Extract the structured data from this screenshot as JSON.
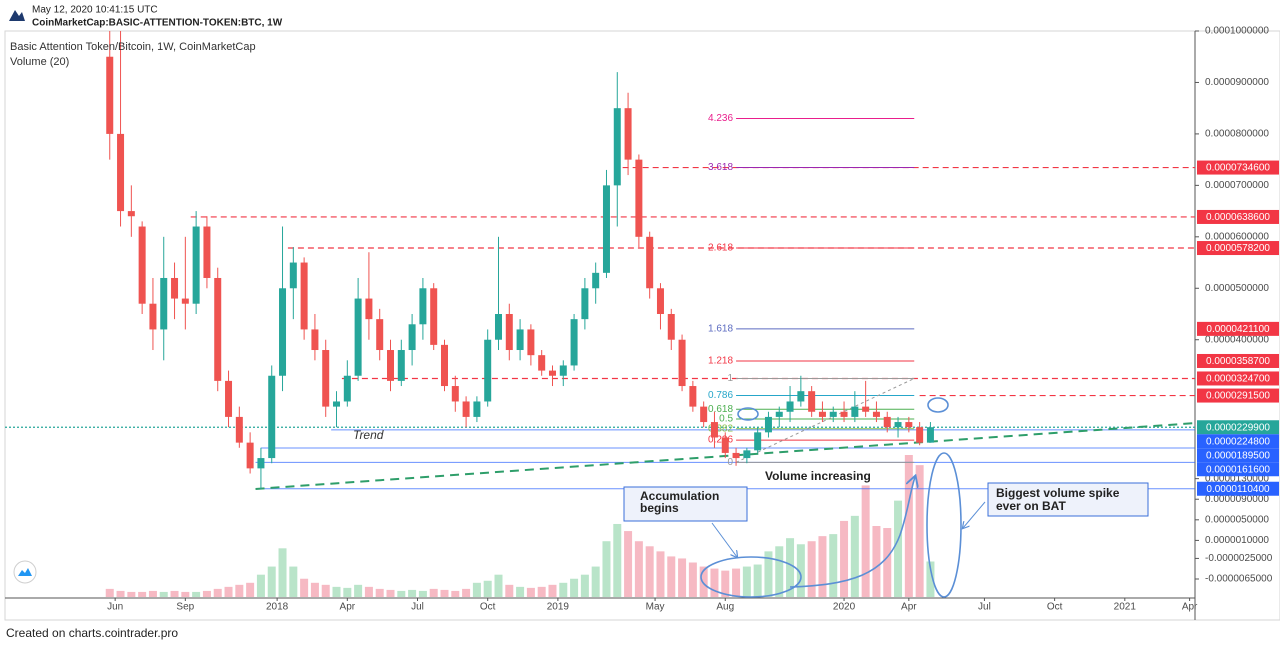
{
  "header": {
    "timestamp": "May 12, 2020 10:41:15 UTC",
    "symbol": "CoinMarketCap:BASIC-ATTENTION-TOKEN:BTC, 1W"
  },
  "footer": "Created on charts.cointrader.pro",
  "chart_data": {
    "type": "candlestick",
    "title": "Basic Attention Token/Bitcoin, 1W, CoinMarketCap",
    "subtitle": "Volume (20)",
    "colors": {
      "up": "#26a69a",
      "down": "#ef5350",
      "volume_up": "#b9e4c9",
      "volume_down": "#f6b9c3"
    },
    "x": [
      0,
      2,
      4,
      6,
      8,
      10,
      12,
      14,
      16,
      18,
      20,
      22,
      24,
      26,
      28,
      30,
      32,
      34,
      36,
      38,
      40,
      42,
      44,
      46,
      48,
      50,
      52,
      54,
      56,
      58,
      60,
      62,
      64,
      66,
      68,
      70,
      72,
      74,
      76,
      78,
      80,
      82,
      84,
      86,
      88,
      90,
      92,
      94,
      96,
      98,
      100,
      102,
      104,
      106,
      108,
      110,
      112,
      114,
      116,
      118,
      120,
      122,
      124,
      126,
      128,
      130,
      132,
      134,
      136,
      138,
      140,
      142,
      144,
      146,
      148,
      150,
      152
    ],
    "open": [
      9.5e-05,
      8e-05,
      6.5e-05,
      6.2e-05,
      4.7e-05,
      4.2e-05,
      5.2e-05,
      4.8e-05,
      4.7e-05,
      6.2e-05,
      5.2e-05,
      3.2e-05,
      2.5e-05,
      2e-05,
      1.5e-05,
      1.7e-05,
      3.3e-05,
      5e-05,
      5.5e-05,
      4.2e-05,
      3.8e-05,
      2.7e-05,
      2.8e-05,
      3.3e-05,
      4.8e-05,
      4.4e-05,
      3.8e-05,
      3.2e-05,
      3.8e-05,
      4.3e-05,
      5e-05,
      3.9e-05,
      3.1e-05,
      2.8e-05,
      2.5e-05,
      2.8e-05,
      4e-05,
      4.5e-05,
      3.8e-05,
      4.2e-05,
      3.7e-05,
      3.4e-05,
      3.3e-05,
      3.5e-05,
      4.4e-05,
      5e-05,
      5.3e-05,
      7e-05,
      8.5e-05,
      7.5e-05,
      6e-05,
      5e-05,
      4.5e-05,
      4e-05,
      3.1e-05,
      2.7e-05,
      2.4e-05,
      2.1e-05,
      1.8e-05,
      1.7e-05,
      1.85e-05,
      2.2e-05,
      2.5e-05,
      2.6e-05,
      2.8e-05,
      3e-05,
      2.6e-05,
      2.5e-05,
      2.6e-05,
      2.5e-05,
      2.7e-05,
      2.6e-05,
      2.5e-05,
      2.3e-05,
      2.4e-05,
      2.3e-05,
      2e-05
    ],
    "high": [
      0.00011,
      0.0001,
      7e-05,
      6.3e-05,
      5.2e-05,
      6e-05,
      5.5e-05,
      6e-05,
      6.5e-05,
      6.4e-05,
      5.4e-05,
      3.4e-05,
      2.7e-05,
      2.2e-05,
      1.9e-05,
      3.5e-05,
      6.2e-05,
      5.8e-05,
      5.6e-05,
      4.5e-05,
      4e-05,
      3e-05,
      3.6e-05,
      5.2e-05,
      5.7e-05,
      4.6e-05,
      4e-05,
      4e-05,
      4.5e-05,
      5.2e-05,
      5.1e-05,
      4e-05,
      3.3e-05,
      2.9e-05,
      2.9e-05,
      4.2e-05,
      6e-05,
      4.7e-05,
      4.4e-05,
      4.3e-05,
      3.8e-05,
      3.5e-05,
      3.6e-05,
      4.5e-05,
      5.2e-05,
      5.5e-05,
      7.3e-05,
      9.2e-05,
      8.8e-05,
      7.6e-05,
      6.1e-05,
      5.1e-05,
      4.6e-05,
      4.1e-05,
      3.2e-05,
      2.8e-05,
      2.6e-05,
      2.2e-05,
      1.9e-05,
      1.9e-05,
      2.3e-05,
      2.6e-05,
      2.7e-05,
      3.1e-05,
      3.3e-05,
      3.1e-05,
      2.8e-05,
      2.7e-05,
      2.8e-05,
      3e-05,
      3.2e-05,
      2.8e-05,
      2.6e-05,
      2.5e-05,
      2.5e-05,
      2.4e-05,
      2.4e-05
    ],
    "low": [
      7.5e-05,
      6.2e-05,
      6e-05,
      4.5e-05,
      3.8e-05,
      3.6e-05,
      4.4e-05,
      4.2e-05,
      4.5e-05,
      5e-05,
      3e-05,
      2.3e-05,
      1.9e-05,
      1.4e-05,
      1.1e-05,
      1.6e-05,
      3e-05,
      4.4e-05,
      4e-05,
      3.6e-05,
      2.5e-05,
      2.3e-05,
      2.7e-05,
      3.2e-05,
      4e-05,
      3.6e-05,
      3e-05,
      3.1e-05,
      3.5e-05,
      4e-05,
      3.8e-05,
      3e-05,
      2.6e-05,
      2.3e-05,
      2.4e-05,
      2.7e-05,
      3.8e-05,
      3.6e-05,
      3.6e-05,
      3.5e-05,
      3.3e-05,
      3.1e-05,
      3.1e-05,
      3.4e-05,
      4.2e-05,
      4.7e-05,
      5.2e-05,
      6.2e-05,
      7.2e-05,
      5.8e-05,
      4.8e-05,
      4.2e-05,
      3.8e-05,
      3e-05,
      2.6e-05,
      2.3e-05,
      1.9e-05,
      1.7e-05,
      1.55e-05,
      1.6e-05,
      1.8e-05,
      2.1e-05,
      2.3e-05,
      2.4e-05,
      2.7e-05,
      2.5e-05,
      2.4e-05,
      2.4e-05,
      2.4e-05,
      2.4e-05,
      2.5e-05,
      2.4e-05,
      2.2e-05,
      2.1e-05,
      2.2e-05,
      1.95e-05,
      2e-05
    ],
    "close": [
      8e-05,
      6.5e-05,
      6.4e-05,
      4.7e-05,
      4.2e-05,
      5.2e-05,
      4.8e-05,
      4.7e-05,
      6.2e-05,
      5.2e-05,
      3.2e-05,
      2.5e-05,
      2e-05,
      1.5e-05,
      1.7e-05,
      3.3e-05,
      5e-05,
      5.5e-05,
      4.2e-05,
      3.8e-05,
      2.7e-05,
      2.8e-05,
      3.3e-05,
      4.8e-05,
      4.4e-05,
      3.8e-05,
      3.2e-05,
      3.8e-05,
      4.3e-05,
      5e-05,
      3.9e-05,
      3.1e-05,
      2.8e-05,
      2.5e-05,
      2.8e-05,
      4e-05,
      4.5e-05,
      3.8e-05,
      4.2e-05,
      3.7e-05,
      3.4e-05,
      3.3e-05,
      3.5e-05,
      4.4e-05,
      5e-05,
      5.3e-05,
      7e-05,
      8.5e-05,
      7.5e-05,
      6e-05,
      5e-05,
      4.5e-05,
      4e-05,
      3.1e-05,
      2.7e-05,
      2.4e-05,
      2.1e-05,
      1.8e-05,
      1.7e-05,
      1.85e-05,
      2.2e-05,
      2.5e-05,
      2.6e-05,
      2.8e-05,
      3e-05,
      2.6e-05,
      2.5e-05,
      2.6e-05,
      2.5e-05,
      2.7e-05,
      2.6e-05,
      2.5e-05,
      2.3e-05,
      2.4e-05,
      2.3e-05,
      2e-05,
      2.3e-05
    ],
    "volume": [
      8,
      6,
      5,
      5,
      6,
      5,
      6,
      5,
      5,
      6,
      8,
      10,
      12,
      14,
      22,
      30,
      48,
      30,
      18,
      14,
      12,
      10,
      9,
      12,
      10,
      8,
      7,
      6,
      7,
      6,
      8,
      7,
      6,
      8,
      14,
      16,
      22,
      12,
      10,
      9,
      10,
      12,
      14,
      18,
      22,
      30,
      55,
      72,
      65,
      55,
      50,
      45,
      40,
      38,
      34,
      30,
      28,
      26,
      28,
      30,
      32,
      45,
      50,
      58,
      52,
      55,
      60,
      62,
      75,
      80,
      110,
      70,
      68,
      95,
      140,
      130,
      35
    ],
    "xlim": [
      -19.4,
      201
    ],
    "xticks": [
      {
        "value": 1,
        "label": "Jun"
      },
      {
        "value": 14,
        "label": "Sep"
      },
      {
        "value": 31,
        "label": "2018"
      },
      {
        "value": 44,
        "label": "Apr"
      },
      {
        "value": 57,
        "label": "Jul"
      },
      {
        "value": 70,
        "label": "Oct"
      },
      {
        "value": 83,
        "label": "2019"
      },
      {
        "value": 101,
        "label": "May"
      },
      {
        "value": 114,
        "label": "Aug"
      },
      {
        "value": 136,
        "label": "2020"
      },
      {
        "value": 148,
        "label": "Apr"
      },
      {
        "value": 162,
        "label": "Jul"
      },
      {
        "value": 175,
        "label": "Oct"
      },
      {
        "value": 188,
        "label": "2021"
      },
      {
        "value": 200,
        "label": "Apr"
      }
    ],
    "ylim": [
      -1e-05,
      0.0001
    ],
    "yticks": [
      {
        "value": 0.0001,
        "label": "0.0001000000"
      },
      {
        "value": 9e-05,
        "label": "0.0000900000"
      },
      {
        "value": 8e-05,
        "label": "0.0000800000"
      },
      {
        "value": 7e-05,
        "label": "0.0000700000"
      },
      {
        "value": 6e-05,
        "label": "0.0000600000"
      },
      {
        "value": 5e-05,
        "label": "0.0000500000"
      },
      {
        "value": 4e-05,
        "label": "0.0000400000"
      },
      {
        "value": 1.3e-05,
        "label": "0.0000130000"
      },
      {
        "value": 9e-06,
        "label": "0.0000090000"
      },
      {
        "value": 5e-06,
        "label": "0.0000050000"
      },
      {
        "value": 1e-06,
        "label": "0.0000010000"
      },
      {
        "value": -2.5e-06,
        "label": "-0.0000025000"
      },
      {
        "value": -6.5e-06,
        "label": "-0.0000065000"
      }
    ],
    "levels": [
      {
        "value": 7.346e-05,
        "label": "0.0000734600",
        "color": "#f23645",
        "style": "dashed",
        "start": 95
      },
      {
        "value": 6.386e-05,
        "label": "0.0000638600",
        "color": "#f23645",
        "style": "dashed",
        "start": 15
      },
      {
        "value": 5.782e-05,
        "label": "0.0000578200",
        "color": "#f23645",
        "style": "dashed",
        "start": 33
      },
      {
        "value": 4.211e-05,
        "label": "0.0000421100",
        "color": "#f23645",
        "style": "none",
        "start": 149
      },
      {
        "value": 3.587e-05,
        "label": "0.0000358700",
        "color": "#f23645",
        "style": "none",
        "start": 149
      },
      {
        "value": 3.247e-05,
        "label": "0.0000324700",
        "color": "#f23645",
        "style": "dashed",
        "start": 43
      },
      {
        "value": 2.915e-05,
        "label": "0.0000291500",
        "color": "#f23645",
        "style": "dashed",
        "start": 150
      },
      {
        "value": 2.299e-05,
        "label": "0.0000229900",
        "color": "#26a69a",
        "style": "dotted",
        "start": -19.4
      },
      {
        "value": 2.248e-05,
        "label": "0.0000224800",
        "color": "#2962ff",
        "style": "solid",
        "start": 41
      },
      {
        "value": 1.895e-05,
        "label": "0.0000189500",
        "color": "#2962ff",
        "style": "solid",
        "start": 28
      },
      {
        "value": 1.616e-05,
        "label": "0.0000161600",
        "color": "#2962ff",
        "style": "solid",
        "start": 27
      },
      {
        "value": 1.104e-05,
        "label": "0.0000110400",
        "color": "#2962ff",
        "style": "solid",
        "start": 27
      }
    ],
    "fib_range": [
      116,
      149
    ],
    "fib": [
      {
        "label": "4.236",
        "value": 8.3e-05,
        "color": "#e91e8c"
      },
      {
        "label": "3.618",
        "value": 7.346e-05,
        "color": "#9c27b0"
      },
      {
        "label": "2.618",
        "value": 5.782e-05,
        "color": "#f23645"
      },
      {
        "label": "1.618",
        "value": 4.211e-05,
        "color": "#5c6bc0"
      },
      {
        "label": "1.218",
        "value": 3.587e-05,
        "color": "#f23645"
      },
      {
        "label": "1",
        "value": 3.247e-05,
        "color": "#999999"
      },
      {
        "label": "0.786",
        "value": 2.915e-05,
        "color": "#26a6c9"
      },
      {
        "label": "0.618",
        "value": 2.65e-05,
        "color": "#4caf50"
      },
      {
        "label": "0.5",
        "value": 2.46e-05,
        "color": "#4caf50"
      },
      {
        "label": "0.382",
        "value": 2.27e-05,
        "color": "#8bc34a"
      },
      {
        "label": "0.236",
        "value": 2.05e-05,
        "color": "#f23645"
      },
      {
        "label": "0",
        "value": 1.616e-05,
        "color": "#999999"
      }
    ],
    "trend": {
      "label": "Trend",
      "x": [
        27,
        201
      ],
      "values": [
        1.1e-05,
        2.38e-05
      ],
      "color": "#2e9e6a"
    },
    "annotations": {
      "volume_increasing": "Volume increasing",
      "accumulation": [
        "Accumulation",
        "begins"
      ],
      "spike": [
        "Biggest volume spike",
        "ever on BAT"
      ]
    }
  }
}
